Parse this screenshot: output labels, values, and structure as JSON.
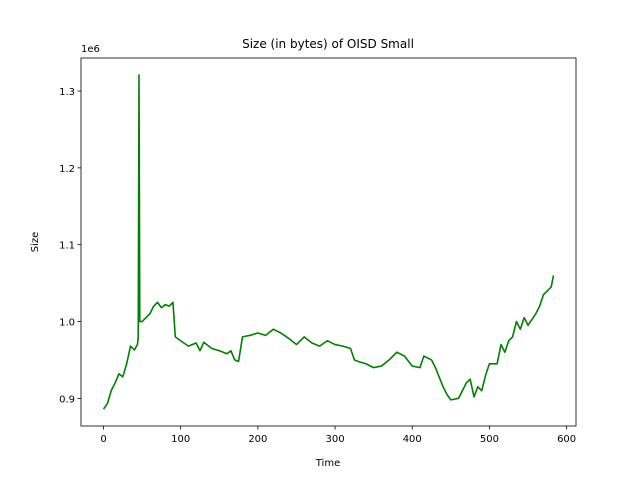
{
  "chart_data": {
    "type": "line",
    "title": "Size (in bytes) of OISD Small",
    "x_label": "Time",
    "y_label": "Size",
    "y_offset_label": "1e6",
    "x": [
      0,
      5,
      10,
      15,
      20,
      25,
      30,
      35,
      40,
      44,
      45,
      46,
      47,
      50,
      55,
      60,
      65,
      70,
      75,
      80,
      85,
      90,
      93,
      100,
      110,
      120,
      125,
      130,
      140,
      150,
      160,
      165,
      170,
      175,
      180,
      190,
      200,
      210,
      220,
      230,
      240,
      250,
      260,
      270,
      280,
      290,
      300,
      310,
      320,
      325,
      330,
      340,
      350,
      360,
      370,
      380,
      390,
      400,
      410,
      415,
      425,
      430,
      440,
      445,
      450,
      460,
      465,
      470,
      475,
      480,
      485,
      490,
      495,
      500,
      510,
      515,
      520,
      525,
      530,
      535,
      540,
      545,
      550,
      560,
      565,
      570,
      575,
      580,
      583
    ],
    "series": [
      {
        "name": "Size",
        "color": "#008000",
        "values": [
          886000,
          893000,
          910000,
          920000,
          932000,
          928000,
          945000,
          968000,
          963000,
          970000,
          980000,
          1321000,
          1000000,
          1000000,
          1005000,
          1010000,
          1020000,
          1025000,
          1018000,
          1022000,
          1020000,
          1025000,
          980000,
          975000,
          968000,
          972000,
          962000,
          973000,
          965000,
          962000,
          958000,
          962000,
          950000,
          948000,
          980000,
          982000,
          985000,
          982000,
          990000,
          985000,
          978000,
          970000,
          980000,
          972000,
          968000,
          975000,
          970000,
          968000,
          965000,
          950000,
          948000,
          945000,
          940000,
          942000,
          950000,
          960000,
          955000,
          942000,
          940000,
          955000,
          950000,
          940000,
          915000,
          905000,
          898000,
          900000,
          910000,
          920000,
          925000,
          902000,
          915000,
          910000,
          930000,
          945000,
          945000,
          970000,
          960000,
          975000,
          980000,
          1000000,
          990000,
          1005000,
          995000,
          1010000,
          1020000,
          1035000,
          1040000,
          1045000,
          1060000
        ]
      }
    ],
    "xlim": [
      -29.15,
      612.15
    ],
    "ylim": [
      864000,
      1343000
    ],
    "xticks": [
      0,
      100,
      200,
      300,
      400,
      500,
      600
    ],
    "yticks": [
      {
        "value": 900000,
        "label": "0.9"
      },
      {
        "value": 1000000,
        "label": "1.0"
      },
      {
        "value": 1100000,
        "label": "1.1"
      },
      {
        "value": 1200000,
        "label": "1.2"
      },
      {
        "value": 1300000,
        "label": "1.3"
      }
    ]
  }
}
